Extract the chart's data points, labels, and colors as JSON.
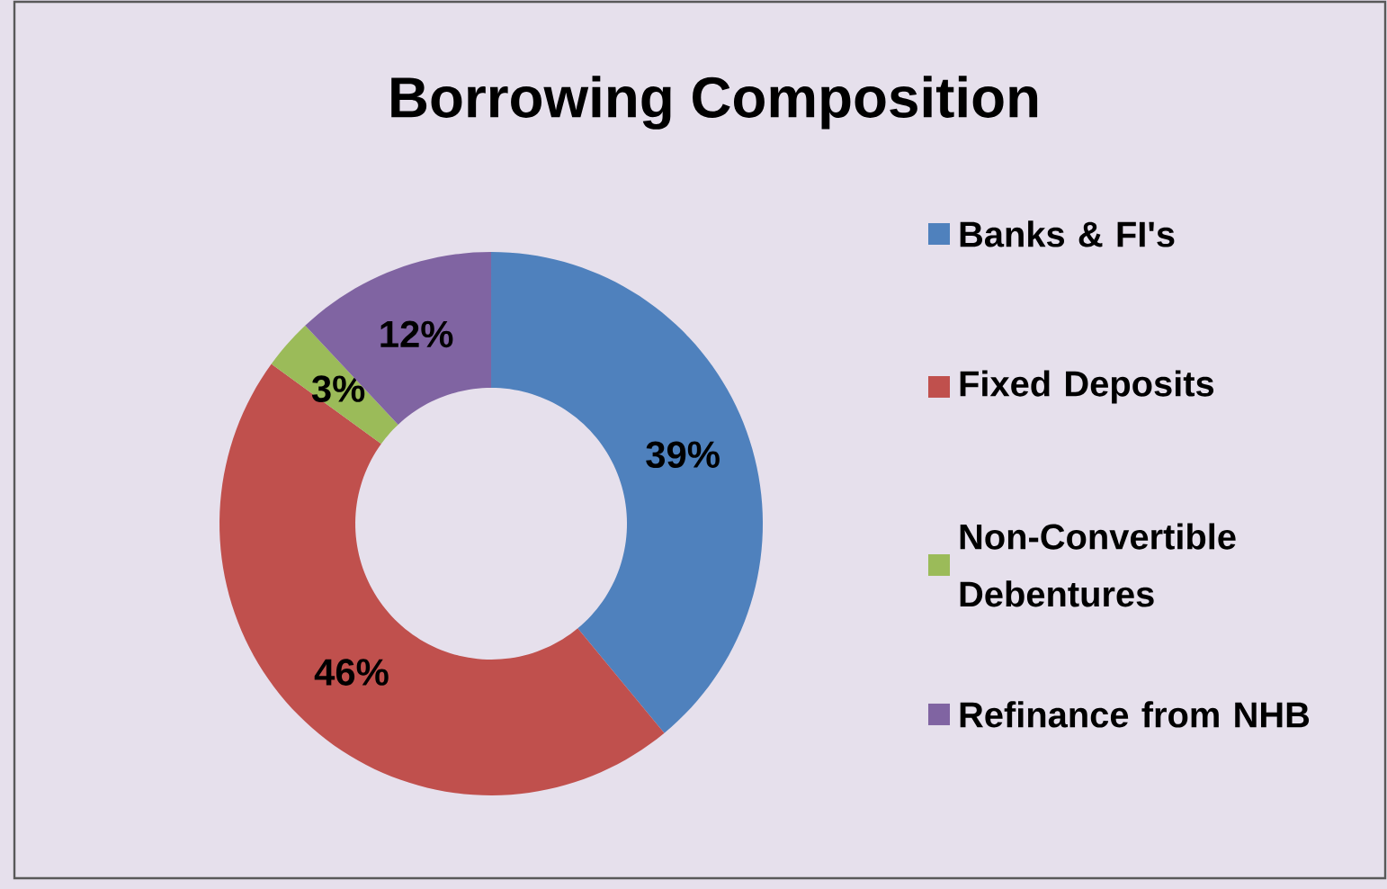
{
  "chart_data": {
    "type": "donut",
    "title": "Borrowing Composition",
    "categories": [
      "Banks & FI's",
      "Fixed Deposits",
      "Non-Convertible Debentures",
      "Refinance from NHB"
    ],
    "values": [
      39,
      46,
      3,
      12
    ],
    "colors": [
      "#4f81bd",
      "#c0504d",
      "#9bbb59",
      "#8064a2"
    ],
    "value_labels": [
      "39%",
      "46%",
      "3%",
      "12%"
    ],
    "legend": "right"
  }
}
